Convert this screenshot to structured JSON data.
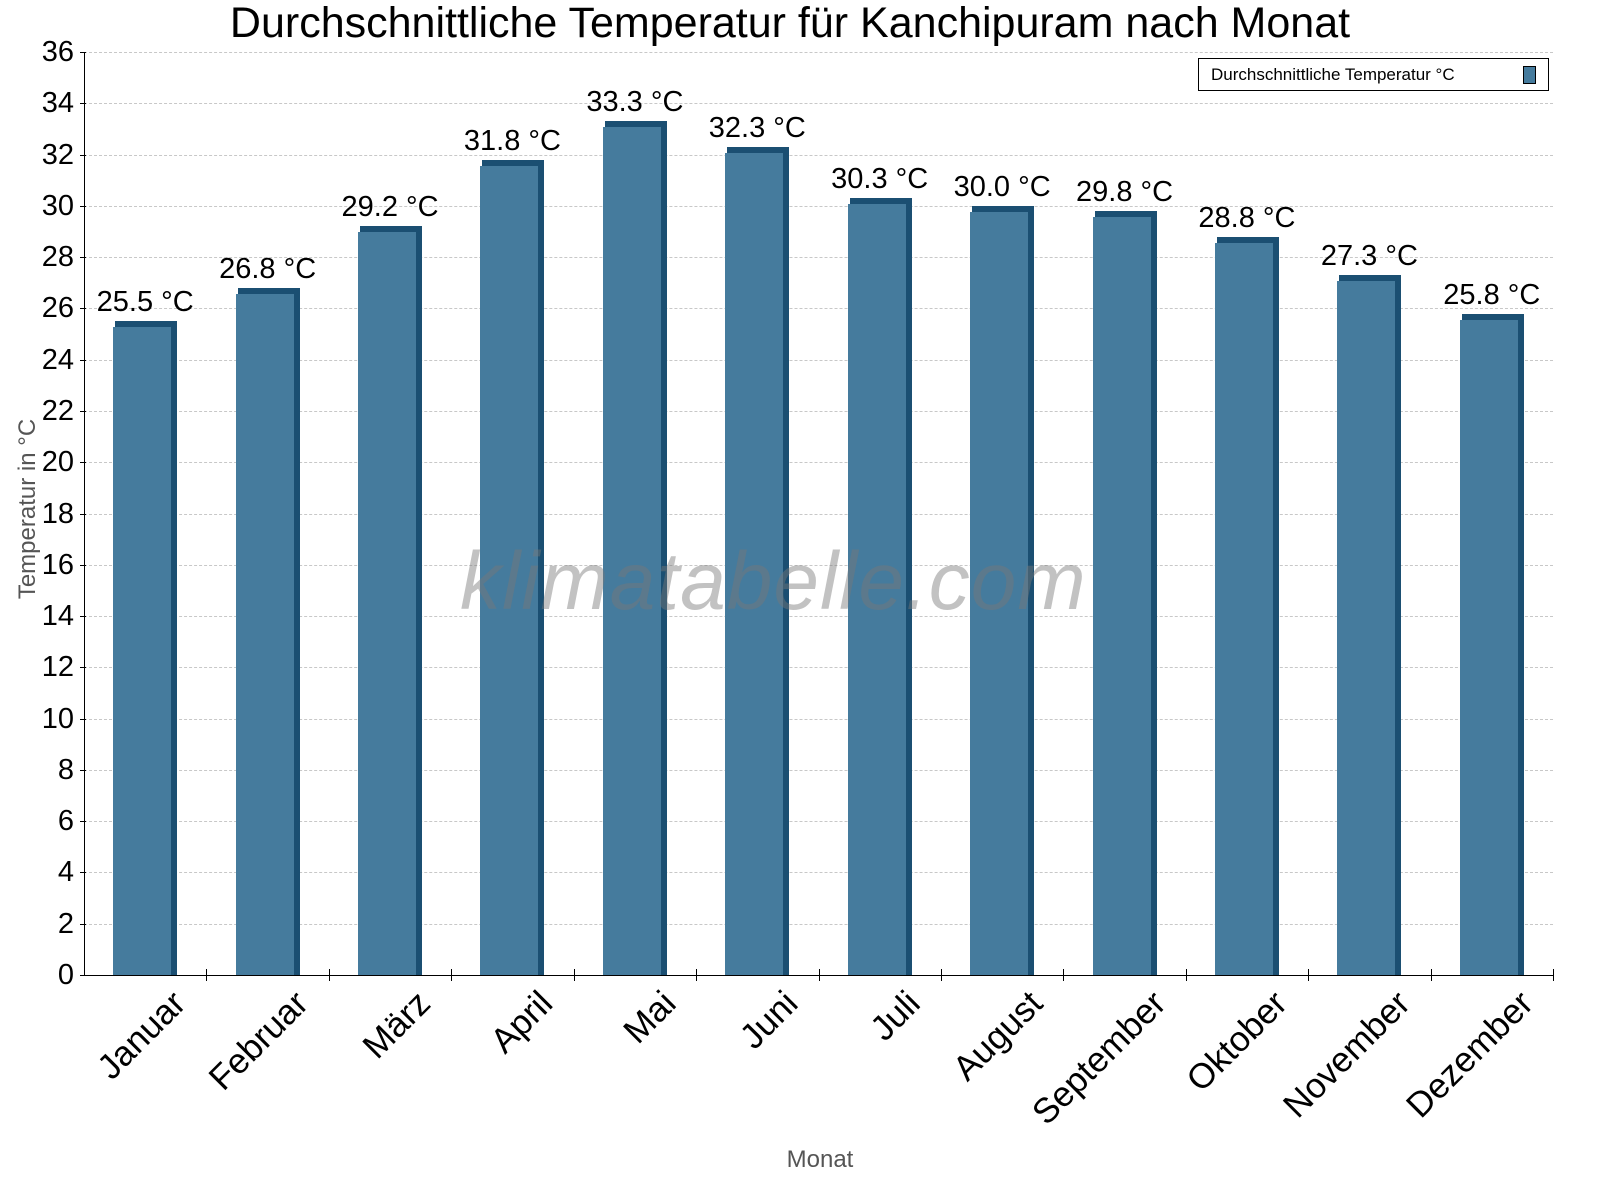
{
  "chart_data": {
    "type": "bar",
    "title": "Durchschnittliche Temperatur für Kanchipuram nach Monat",
    "xlabel": "Monat",
    "ylabel": "Temperatur in °C",
    "ylim": [
      0,
      36
    ],
    "yticks": [
      0,
      2,
      4,
      6,
      8,
      10,
      12,
      14,
      16,
      18,
      20,
      22,
      24,
      26,
      28,
      30,
      32,
      34,
      36
    ],
    "grid": true,
    "legend_position": "top-right",
    "categories": [
      "Januar",
      "Februar",
      "März",
      "April",
      "Mai",
      "Juni",
      "Juli",
      "August",
      "September",
      "Oktober",
      "November",
      "Dezember"
    ],
    "series": [
      {
        "name": "Durchschnittliche Temperatur °C",
        "color": "#457b9d",
        "values": [
          25.5,
          26.8,
          29.2,
          31.8,
          33.3,
          32.3,
          30.3,
          30.0,
          29.8,
          28.8,
          27.3,
          25.8
        ],
        "labels": [
          "25.5 °C",
          "26.8 °C",
          "29.2 °C",
          "31.8 °C",
          "33.3 °C",
          "32.3 °C",
          "30.3 °C",
          "30.0 °C",
          "29.8 °C",
          "28.8 °C",
          "27.3 °C",
          "25.8 °C"
        ]
      }
    ],
    "watermark": "klimatabelle.com"
  },
  "title": "Durchschnittliche Temperatur für Kanchipuram nach Monat",
  "xlabel": "Monat",
  "ylabel": "Temperatur in °C",
  "legend": {
    "label": "Durchschnittliche Temperatur °C"
  },
  "watermark": "klimatabelle.com"
}
